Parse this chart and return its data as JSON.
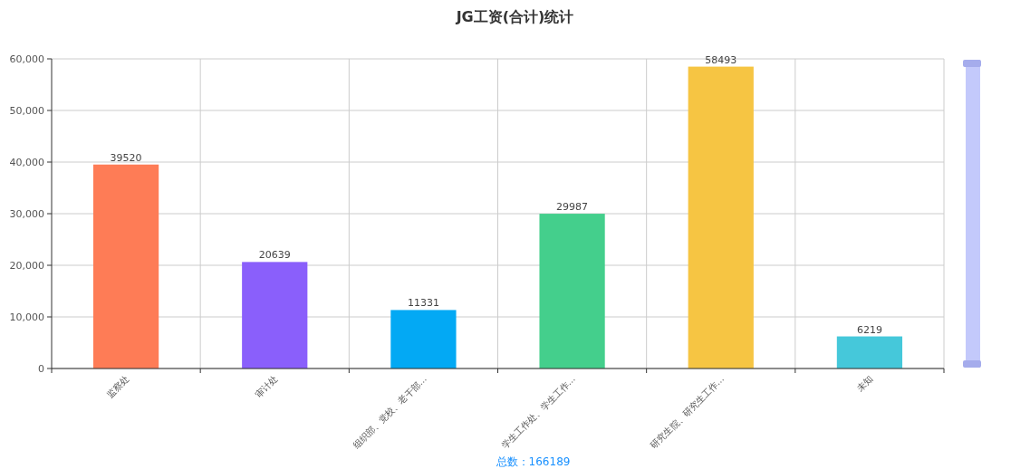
{
  "chart_data": {
    "type": "bar",
    "title": "JG工资(合计)统计",
    "categories": [
      "监察处",
      "审计处",
      "组织部、党校、老干部...",
      "学生工作处、学生工作...",
      "研究生院、研究生工作...",
      "未知"
    ],
    "values": [
      39520,
      20639,
      11331,
      29987,
      58493,
      6219
    ],
    "colors": [
      "#fe7c56",
      "#8a5ffb",
      "#03a9f4",
      "#44cf8c",
      "#f6c543",
      "#45c8da"
    ],
    "ylim": [
      0,
      60000
    ],
    "yticks": [
      0,
      {
        "value": 10000,
        "label": "10,000"
      },
      {
        "value": 20000,
        "label": "20,000"
      },
      {
        "value": 30000,
        "label": "30,000"
      },
      {
        "value": 40000,
        "label": "40,000"
      },
      {
        "value": 50000,
        "label": "50,000"
      },
      {
        "value": 60000,
        "label": "60,000"
      }
    ],
    "grid": true,
    "data_labels": true,
    "annotations": [
      "总数：166189"
    ]
  }
}
